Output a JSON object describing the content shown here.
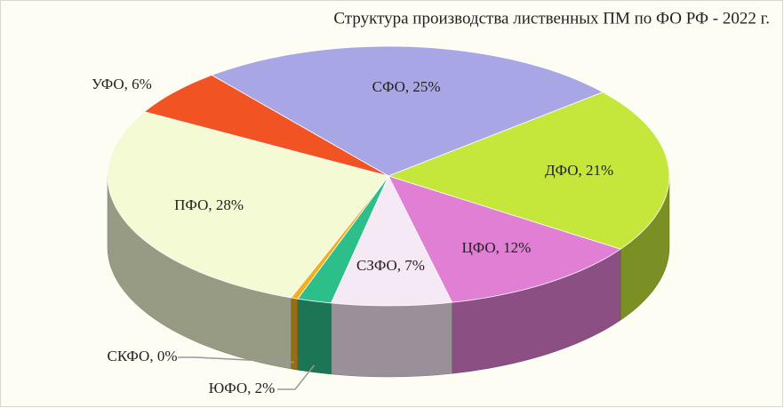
{
  "chart_data": {
    "type": "pie3d",
    "title": "Структура производства лиственных ПМ по ФО  РФ - 2022 г.",
    "values": [
      25,
      21,
      12,
      7,
      2,
      0.4,
      28,
      6
    ],
    "value_labels": [
      "СФО, 25%",
      "ДФО, 21%",
      "ЦФО, 12%",
      "СЗФО, 7%",
      "ЮФО, 2%",
      "СКФО, 0%",
      "ПФО, 28%",
      "УФО, 6%"
    ],
    "colors": [
      "#a9a6e6",
      "#c5e63a",
      "#e07fd3",
      "#f6e9f6",
      "#2dbf8a",
      "#f0b020",
      "#f4fad4",
      "#f25322"
    ]
  }
}
